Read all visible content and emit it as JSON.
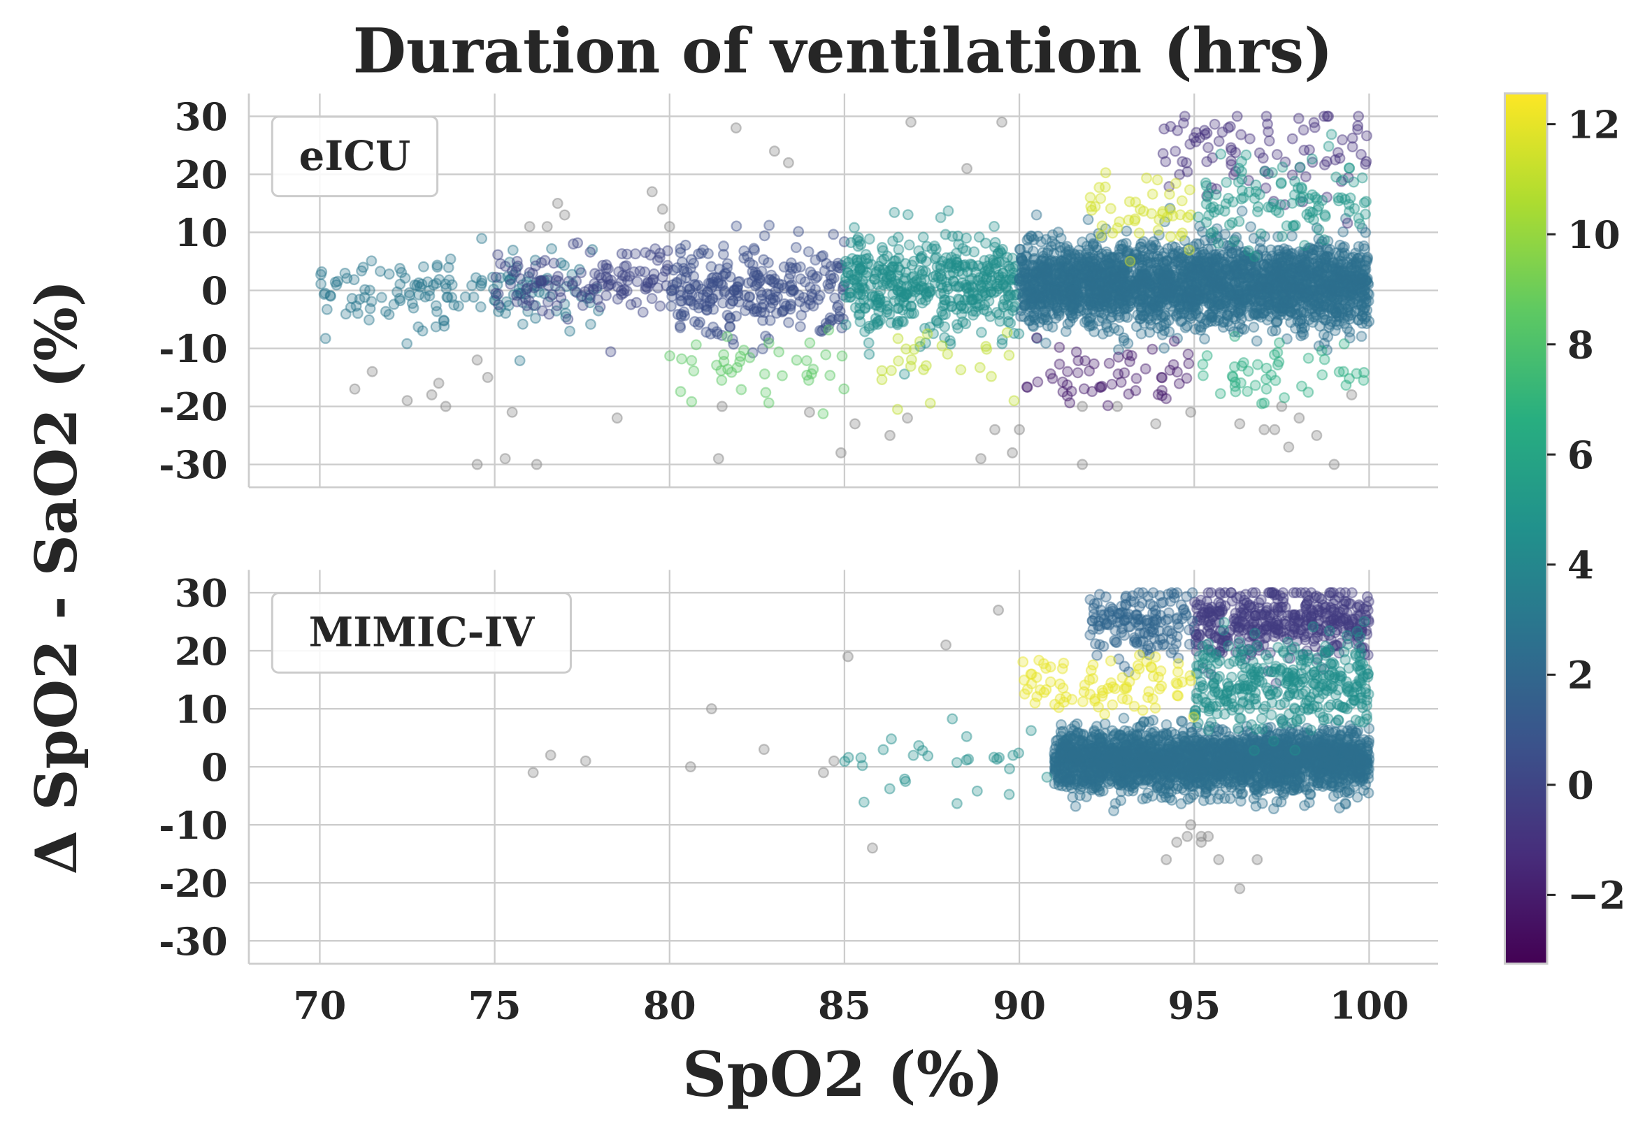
{
  "chart_data": {
    "type": "scatter",
    "title": "Duration of ventilation (hrs)",
    "xlabel": "SpO2 (%)",
    "ylabel": "Δ SpO2 - SaO2 (%)",
    "xlim": [
      68,
      102
    ],
    "ylim": [
      -34,
      34
    ],
    "xticks": [
      "70",
      "75",
      "80",
      "85",
      "90",
      "95",
      "100"
    ],
    "xtick_values": [
      70,
      75,
      80,
      85,
      90,
      95,
      100
    ],
    "yticks": [
      "30",
      "20",
      "10",
      "0",
      "-10",
      "-20",
      "-30"
    ],
    "ytick_values": [
      30,
      20,
      10,
      0,
      -10,
      -20,
      -30
    ],
    "grid": true,
    "colorbar": {
      "label": "Duration of ventilation (hrs)",
      "colormap": "viridis",
      "range": [
        -3.25,
        12.55
      ],
      "ticks": [
        "12",
        "10",
        "8",
        "6",
        "4",
        "2",
        "0",
        "−2"
      ],
      "tick_values": [
        12,
        10,
        8,
        6,
        4,
        2,
        0,
        -2
      ]
    },
    "missing_color": "#8c8c8c",
    "panels": [
      {
        "legend": "eICU",
        "clusters": [
          {
            "x": [
              70,
              78
            ],
            "y": 0,
            "sd": 3,
            "c": 3,
            "n": 160
          },
          {
            "x": [
              75,
              80
            ],
            "y": 2,
            "sd": 3,
            "c": 0,
            "n": 130
          },
          {
            "x": [
              80,
              85
            ],
            "y": 0,
            "sd": 4,
            "c": 0.5,
            "n": 280
          },
          {
            "x": [
              85,
              90
            ],
            "y": 1,
            "sd": 4,
            "c": 4.5,
            "n": 450
          },
          {
            "x": [
              90,
              100
            ],
            "y": 1,
            "sd": 3.5,
            "c": 2.5,
            "n": 2600
          },
          {
            "x": [
              90,
              95
            ],
            "y": -15,
            "sd": 3,
            "c": -2,
            "n": 55
          },
          {
            "x": [
              94,
              100
            ],
            "y": 24,
            "sd": 4,
            "c": -1,
            "n": 90
          },
          {
            "x": [
              92,
              95
            ],
            "y": 13,
            "sd": 3,
            "c": 11.5,
            "n": 45
          },
          {
            "x": [
              86,
              90
            ],
            "y": -13,
            "sd": 3,
            "c": 11,
            "n": 25
          },
          {
            "x": [
              80,
              85
            ],
            "y": -14,
            "sd": 3,
            "c": 8.5,
            "n": 40
          },
          {
            "x": [
              95,
              100
            ],
            "y": -14,
            "sd": 3,
            "c": 6.5,
            "n": 45
          },
          {
            "x": [
              95,
              100
            ],
            "y": 15,
            "sd": 4,
            "c": 5,
            "n": 110
          }
        ],
        "missing_points": [
          [
            71,
            -17
          ],
          [
            71.5,
            -14
          ],
          [
            72.5,
            -19
          ],
          [
            73.2,
            -18
          ],
          [
            73.4,
            -16
          ],
          [
            73.6,
            -20
          ],
          [
            74.5,
            -30
          ],
          [
            74.5,
            -12
          ],
          [
            74.8,
            -15
          ],
          [
            75.3,
            -29
          ],
          [
            75.5,
            -21
          ],
          [
            76,
            11
          ],
          [
            76.2,
            -30
          ],
          [
            76.5,
            11
          ],
          [
            76.8,
            15
          ],
          [
            77,
            13
          ],
          [
            78.5,
            -22
          ],
          [
            79.5,
            17
          ],
          [
            79.8,
            14
          ],
          [
            80,
            11
          ],
          [
            81.4,
            -29
          ],
          [
            81.5,
            -20
          ],
          [
            81.9,
            28
          ],
          [
            83,
            24
          ],
          [
            83.4,
            22
          ],
          [
            84,
            -21
          ],
          [
            84.9,
            -28
          ],
          [
            85.3,
            -23
          ],
          [
            86.3,
            -25
          ],
          [
            86.8,
            -22
          ],
          [
            86.9,
            29
          ],
          [
            88.5,
            21
          ],
          [
            88.9,
            -29
          ],
          [
            89.3,
            -24
          ],
          [
            89.5,
            29
          ],
          [
            89.8,
            -28
          ],
          [
            90,
            -24
          ],
          [
            91.8,
            -30
          ],
          [
            91.8,
            -20
          ],
          [
            92.8,
            -20
          ],
          [
            93.9,
            -23
          ],
          [
            94.9,
            -21
          ],
          [
            96.3,
            -23
          ],
          [
            97,
            -24
          ],
          [
            97.3,
            -24
          ],
          [
            97.5,
            -20
          ],
          [
            97.7,
            -27
          ],
          [
            98,
            -22
          ],
          [
            98.5,
            -25
          ],
          [
            99,
            -30
          ],
          [
            99.5,
            -18
          ]
        ]
      },
      {
        "legend": "MIMIC-IV",
        "clusters": [
          {
            "x": [
              91,
              100
            ],
            "y": 1,
            "sd": 2.5,
            "c": 2.5,
            "n": 2600
          },
          {
            "x": [
              95,
              100
            ],
            "y": 25,
            "sd": 3,
            "c": -0.5,
            "n": 420
          },
          {
            "x": [
              92,
              95
            ],
            "y": 25,
            "sd": 3,
            "c": 2,
            "n": 160
          },
          {
            "x": [
              95,
              100
            ],
            "y": 14,
            "sd": 4,
            "c": 4.5,
            "n": 360
          },
          {
            "x": [
              90,
              95
            ],
            "y": 14,
            "sd": 3,
            "c": 12,
            "n": 85
          },
          {
            "x": [
              85,
              91
            ],
            "y": 0,
            "sd": 3,
            "c": 4.5,
            "n": 30
          }
        ],
        "missing_points": [
          [
            76.1,
            -1
          ],
          [
            76.6,
            2
          ],
          [
            77.6,
            1
          ],
          [
            80.6,
            0
          ],
          [
            81.2,
            10
          ],
          [
            82.7,
            3
          ],
          [
            84.4,
            -1
          ],
          [
            84.7,
            1
          ],
          [
            85.1,
            19
          ],
          [
            85.8,
            -14
          ],
          [
            87.9,
            21
          ],
          [
            89.4,
            27
          ],
          [
            94.2,
            -16
          ],
          [
            94.5,
            -13
          ],
          [
            94.8,
            -12
          ],
          [
            94.9,
            -10
          ],
          [
            95.2,
            -13
          ],
          [
            95.4,
            -12
          ],
          [
            95.7,
            -16
          ],
          [
            95.2,
            -12
          ],
          [
            96.3,
            -21
          ],
          [
            96.8,
            -16
          ]
        ]
      }
    ]
  }
}
